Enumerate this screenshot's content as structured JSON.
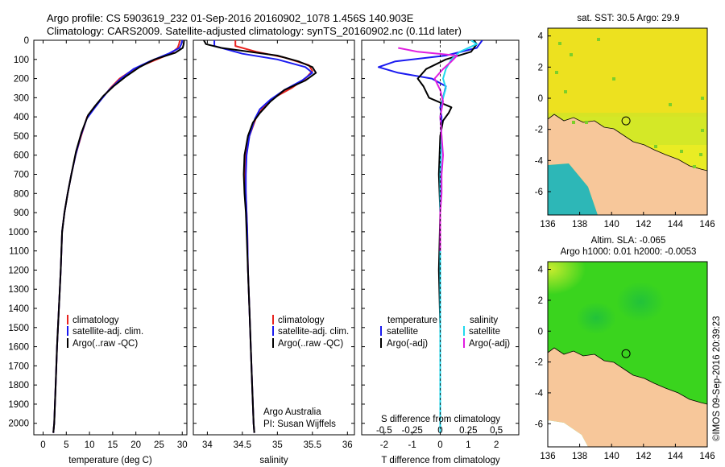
{
  "header": {
    "line1": "Argo profile: CS 5903619_232 01-Sep-2016 20160902_1078 1.456S 140.903E",
    "line2": "Climatology: CARS2009. Satellite-adjusted climatology: synTS_20160902.nc (0.11d later)"
  },
  "colors": {
    "climatology": "#e8231f",
    "satellite": "#1a1af0",
    "argo": "#000000",
    "satellite_diff": "#22d8ee",
    "argo_salinity_diff": "#e01ee0",
    "land": "#f7c79a",
    "ocean_sst": "#e9ec24",
    "ocean_sla": "#3ad41e"
  },
  "depth_axis": {
    "ticks": [
      0,
      100,
      200,
      300,
      400,
      500,
      600,
      700,
      800,
      900,
      1000,
      1100,
      1200,
      1300,
      1400,
      1500,
      1600,
      1700,
      1800,
      1900,
      2000
    ],
    "range": [
      0,
      2060
    ]
  },
  "chart_data": [
    {
      "type": "line",
      "name": "temperature-profile",
      "xlabel": "temperature (deg C)",
      "xlim": [
        -2,
        31
      ],
      "xticks": [
        0,
        5,
        10,
        15,
        20,
        25,
        30
      ],
      "series": [
        {
          "name": "climatology",
          "color": "#e8231f",
          "points": [
            [
              29.5,
              0
            ],
            [
              29.3,
              20
            ],
            [
              29.0,
              40
            ],
            [
              27.5,
              70
            ],
            [
              24.5,
              100
            ],
            [
              21.5,
              130
            ],
            [
              19.0,
              160
            ],
            [
              16.5,
              200
            ],
            [
              14.5,
              250
            ],
            [
              12.8,
              300
            ],
            [
              11.0,
              350
            ],
            [
              9.5,
              400
            ],
            [
              8.2,
              500
            ],
            [
              7.0,
              600
            ],
            [
              6.1,
              700
            ],
            [
              5.3,
              800
            ],
            [
              4.6,
              900
            ],
            [
              4.1,
              1000
            ],
            [
              3.8,
              1200
            ],
            [
              3.4,
              1400
            ],
            [
              3.0,
              1600
            ],
            [
              2.7,
              1800
            ],
            [
              2.4,
              2000
            ],
            [
              2.2,
              2050
            ]
          ]
        },
        {
          "name": "satellite-adj. clim.",
          "color": "#1a1af0",
          "points": [
            [
              30.0,
              0
            ],
            [
              29.8,
              20
            ],
            [
              29.4,
              40
            ],
            [
              27.0,
              70
            ],
            [
              23.0,
              110
            ],
            [
              19.5,
              150
            ],
            [
              16.8,
              200
            ],
            [
              14.2,
              260
            ],
            [
              12.5,
              310
            ],
            [
              10.9,
              360
            ],
            [
              9.4,
              410
            ],
            [
              8.1,
              500
            ],
            [
              7.0,
              600
            ],
            [
              6.1,
              700
            ],
            [
              5.3,
              800
            ],
            [
              4.6,
              900
            ],
            [
              4.1,
              1000
            ],
            [
              3.8,
              1200
            ],
            [
              3.4,
              1400
            ],
            [
              3.0,
              1600
            ],
            [
              2.7,
              1800
            ],
            [
              2.4,
              2000
            ],
            [
              2.2,
              2050
            ]
          ]
        },
        {
          "name": "Argo(..raw -QC)",
          "color": "#000000",
          "points": [
            [
              30.4,
              0
            ],
            [
              30.3,
              20
            ],
            [
              30.1,
              40
            ],
            [
              28.5,
              65
            ],
            [
              24.0,
              100
            ],
            [
              20.8,
              140
            ],
            [
              17.8,
              190
            ],
            [
              15.2,
              240
            ],
            [
              13.0,
              290
            ],
            [
              11.3,
              340
            ],
            [
              9.7,
              390
            ],
            [
              8.3,
              480
            ],
            [
              7.1,
              580
            ],
            [
              6.1,
              700
            ],
            [
              5.3,
              800
            ],
            [
              4.6,
              900
            ],
            [
              4.1,
              1000
            ],
            [
              3.8,
              1200
            ],
            [
              3.4,
              1400
            ],
            [
              3.0,
              1600
            ],
            [
              2.7,
              1800
            ],
            [
              2.4,
              2000
            ],
            [
              2.2,
              2050
            ]
          ]
        }
      ],
      "legend": {
        "position": "lower-right",
        "entries": [
          "climatology",
          "satellite-adj. clim.",
          "Argo(..raw -QC)"
        ]
      }
    },
    {
      "type": "line",
      "name": "salinity-profile",
      "xlabel": "salinity",
      "xlim": [
        33.8,
        36.1
      ],
      "xticks": [
        34,
        34.5,
        35,
        35.5,
        36
      ],
      "xticklabels": [
        "34",
        "34.5",
        "35",
        "35.5",
        "36"
      ],
      "series": [
        {
          "name": "climatology",
          "color": "#e8231f",
          "points": [
            [
              34.4,
              0
            ],
            [
              34.4,
              30
            ],
            [
              34.7,
              60
            ],
            [
              35.1,
              90
            ],
            [
              35.45,
              130
            ],
            [
              35.5,
              160
            ],
            [
              35.4,
              200
            ],
            [
              35.2,
              250
            ],
            [
              34.95,
              300
            ],
            [
              34.8,
              350
            ],
            [
              34.7,
              400
            ],
            [
              34.6,
              500
            ],
            [
              34.55,
              600
            ],
            [
              34.54,
              700
            ],
            [
              34.55,
              800
            ],
            [
              34.56,
              900
            ],
            [
              34.57,
              1000
            ],
            [
              34.58,
              1200
            ],
            [
              34.6,
              1400
            ],
            [
              34.62,
              1600
            ],
            [
              34.64,
              1800
            ],
            [
              34.66,
              2000
            ],
            [
              34.67,
              2050
            ]
          ]
        },
        {
          "name": "satellite-adj. clim.",
          "color": "#1a1af0",
          "points": [
            [
              34.1,
              0
            ],
            [
              34.1,
              30
            ],
            [
              34.5,
              70
            ],
            [
              35.0,
              100
            ],
            [
              35.4,
              140
            ],
            [
              35.5,
              170
            ],
            [
              35.35,
              210
            ],
            [
              35.1,
              260
            ],
            [
              34.9,
              310
            ],
            [
              34.75,
              360
            ],
            [
              34.68,
              410
            ],
            [
              34.6,
              500
            ],
            [
              34.56,
              600
            ],
            [
              34.55,
              700
            ],
            [
              34.55,
              800
            ],
            [
              34.56,
              900
            ],
            [
              34.57,
              1000
            ],
            [
              34.58,
              1200
            ],
            [
              34.6,
              1400
            ],
            [
              34.62,
              1600
            ],
            [
              34.64,
              1800
            ],
            [
              34.66,
              2000
            ],
            [
              34.67,
              2050
            ]
          ]
        },
        {
          "name": "Argo(..raw -QC)",
          "color": "#000000",
          "points": [
            [
              33.95,
              0
            ],
            [
              33.98,
              20
            ],
            [
              34.2,
              40
            ],
            [
              34.6,
              60
            ],
            [
              35.0,
              80
            ],
            [
              35.3,
              110
            ],
            [
              35.5,
              140
            ],
            [
              35.55,
              170
            ],
            [
              35.4,
              210
            ],
            [
              35.1,
              260
            ],
            [
              34.9,
              320
            ],
            [
              34.75,
              380
            ],
            [
              34.65,
              430
            ],
            [
              34.58,
              500
            ],
            [
              34.53,
              600
            ],
            [
              34.52,
              700
            ],
            [
              34.53,
              800
            ],
            [
              34.55,
              900
            ],
            [
              34.56,
              1000
            ],
            [
              34.58,
              1200
            ],
            [
              34.6,
              1400
            ],
            [
              34.62,
              1600
            ],
            [
              34.64,
              1800
            ],
            [
              34.66,
              2000
            ],
            [
              34.67,
              2050
            ]
          ]
        }
      ],
      "legend": {
        "position": "lower-right",
        "entries": [
          "climatology",
          "satellite-adj. clim.",
          "Argo(..raw -QC)"
        ]
      },
      "annotation": {
        "line1": "Argo Australia",
        "line2": "PI: Susan Wijffels"
      }
    },
    {
      "type": "line",
      "name": "difference-from-climatology",
      "xlabel": "T difference from climatology",
      "top_label": "S difference from climatology",
      "xlim": [
        -2.8,
        2.8
      ],
      "xticks": [
        -2,
        -1,
        0,
        1,
        2
      ],
      "xticklabels": [
        "-2",
        "-1",
        "0",
        "1",
        "2"
      ],
      "s_ticks": [
        -0.5,
        -0.25,
        0,
        0.25,
        0.5
      ],
      "s_ticklabels": [
        "-0.5",
        "-0.25",
        "0",
        "0.25",
        "0.5"
      ],
      "series": [
        {
          "name": "temperature satellite",
          "color": "#1a1af0",
          "points": [
            [
              1.5,
              0
            ],
            [
              1.3,
              40
            ],
            [
              0.2,
              80
            ],
            [
              -1.6,
              110
            ],
            [
              -2.2,
              140
            ],
            [
              -1.5,
              170
            ],
            [
              -0.3,
              200
            ],
            [
              0.2,
              240
            ],
            [
              0.1,
              300
            ],
            [
              0.0,
              350
            ],
            [
              0.05,
              400
            ],
            [
              0.0,
              600
            ],
            [
              0.0,
              1000
            ],
            [
              0.0,
              1400
            ],
            [
              0.0,
              2000
            ],
            [
              0.0,
              2050
            ]
          ]
        },
        {
          "name": "temperature Argo(-adj)",
          "color": "#000000",
          "points": [
            [
              1.2,
              0
            ],
            [
              1.3,
              20
            ],
            [
              1.1,
              60
            ],
            [
              0.2,
              100
            ],
            [
              -0.5,
              150
            ],
            [
              -0.8,
              200
            ],
            [
              -0.6,
              240
            ],
            [
              -0.4,
              300
            ],
            [
              0.4,
              350
            ],
            [
              0.3,
              380
            ],
            [
              0.1,
              420
            ],
            [
              0.0,
              500
            ],
            [
              -0.05,
              700
            ],
            [
              0.0,
              900
            ],
            [
              -0.05,
              1200
            ],
            [
              0.0,
              1500
            ],
            [
              0.0,
              1800
            ],
            [
              0.0,
              2050
            ]
          ]
        },
        {
          "name": "salinity satellite",
          "color": "#22d8ee",
          "points": [
            [
              1.1,
              0
            ],
            [
              1.3,
              20
            ],
            [
              0.7,
              60
            ],
            [
              0.4,
              100
            ],
            [
              0.2,
              150
            ],
            [
              0.1,
              200
            ],
            [
              0.2,
              250
            ],
            [
              0.1,
              300
            ],
            [
              0.0,
              400
            ],
            [
              0.05,
              500
            ],
            [
              0.0,
              700
            ],
            [
              0.0,
              1000
            ],
            [
              0.0,
              1500
            ],
            [
              0.0,
              2050
            ]
          ]
        },
        {
          "name": "salinity Argo(-adj)",
          "color": "#e01ee0",
          "points": [
            [
              -1.5,
              40
            ],
            [
              -0.8,
              60
            ],
            [
              0.6,
              80
            ],
            [
              0.4,
              110
            ],
            [
              0.1,
              150
            ],
            [
              -0.2,
              200
            ],
            [
              0.0,
              260
            ],
            [
              0.1,
              320
            ],
            [
              0.0,
              400
            ],
            [
              0.05,
              500
            ],
            [
              0.1,
              600
            ],
            [
              0.05,
              700
            ],
            [
              0.05,
              800
            ],
            [
              0.0,
              900
            ],
            [
              0.0,
              1000
            ],
            [
              0.0,
              1100
            ]
          ]
        }
      ],
      "legend": {
        "temperature_title": "temperature",
        "salinity_title": "salinity",
        "temperature_entries": [
          "satellite",
          "Argo(-adj)"
        ],
        "salinity_entries": [
          "satellite",
          "Argo(-adj)"
        ]
      }
    },
    {
      "type": "heatmap",
      "name": "satellite-sst-map",
      "title": "sat. SST: 30.5 Argo: 29.9",
      "xlim": [
        136,
        146
      ],
      "ylim": [
        -7.5,
        4.5
      ],
      "xticks": [
        136,
        138,
        140,
        142,
        144,
        146
      ],
      "yticks": [
        -6,
        -4,
        -2,
        0,
        2,
        4
      ],
      "argo_position": {
        "lon": 140.903,
        "lat": -1.456
      }
    },
    {
      "type": "heatmap",
      "name": "altimetry-sla-map",
      "title_line1": "Altim. SLA: -0.065",
      "title_line2": "Argo h1000: 0.01 h2000: -0.0053",
      "xlim": [
        136,
        146
      ],
      "ylim": [
        -7.5,
        4.5
      ],
      "xticks": [
        136,
        138,
        140,
        142,
        144,
        146
      ],
      "yticks": [
        -6,
        -4,
        -2,
        0,
        2,
        4
      ],
      "argo_position": {
        "lon": 140.903,
        "lat": -1.456
      }
    }
  ],
  "footer": {
    "credit": "©IMOS 09-Sep-2016 20:39:23"
  }
}
